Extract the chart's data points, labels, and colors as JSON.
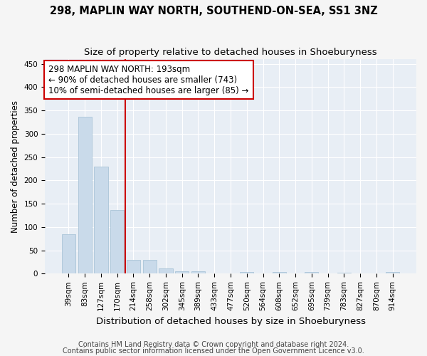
{
  "title": "298, MAPLIN WAY NORTH, SOUTHEND-ON-SEA, SS1 3NZ",
  "subtitle": "Size of property relative to detached houses in Shoeburyness",
  "xlabel": "Distribution of detached houses by size in Shoeburyness",
  "ylabel": "Number of detached properties",
  "categories": [
    "39sqm",
    "83sqm",
    "127sqm",
    "170sqm",
    "214sqm",
    "258sqm",
    "302sqm",
    "345sqm",
    "389sqm",
    "433sqm",
    "477sqm",
    "520sqm",
    "564sqm",
    "608sqm",
    "652sqm",
    "695sqm",
    "739sqm",
    "783sqm",
    "827sqm",
    "870sqm",
    "914sqm"
  ],
  "values": [
    85,
    336,
    229,
    136,
    30,
    30,
    11,
    5,
    5,
    0,
    0,
    4,
    0,
    3,
    0,
    3,
    0,
    2,
    0,
    0,
    3
  ],
  "bar_color": "#c9daea",
  "bar_edge_color": "#aac4d8",
  "vline_x": 3.5,
  "vline_color": "#cc0000",
  "annotation_text": "298 MAPLIN WAY NORTH: 193sqm\n← 90% of detached houses are smaller (743)\n10% of semi-detached houses are larger (85) →",
  "annotation_box_color": "#ffffff",
  "annotation_box_edge": "#cc0000",
  "ylim": [
    0,
    460
  ],
  "yticks": [
    0,
    50,
    100,
    150,
    200,
    250,
    300,
    350,
    400,
    450
  ],
  "footer1": "Contains HM Land Registry data © Crown copyright and database right 2024.",
  "footer2": "Contains public sector information licensed under the Open Government Licence v3.0.",
  "bg_color": "#f5f5f5",
  "plot_bg_color": "#e8eef5",
  "title_fontsize": 10.5,
  "subtitle_fontsize": 9.5,
  "xlabel_fontsize": 9.5,
  "ylabel_fontsize": 8.5,
  "tick_fontsize": 7.5,
  "annot_fontsize": 8.5,
  "footer_fontsize": 7
}
